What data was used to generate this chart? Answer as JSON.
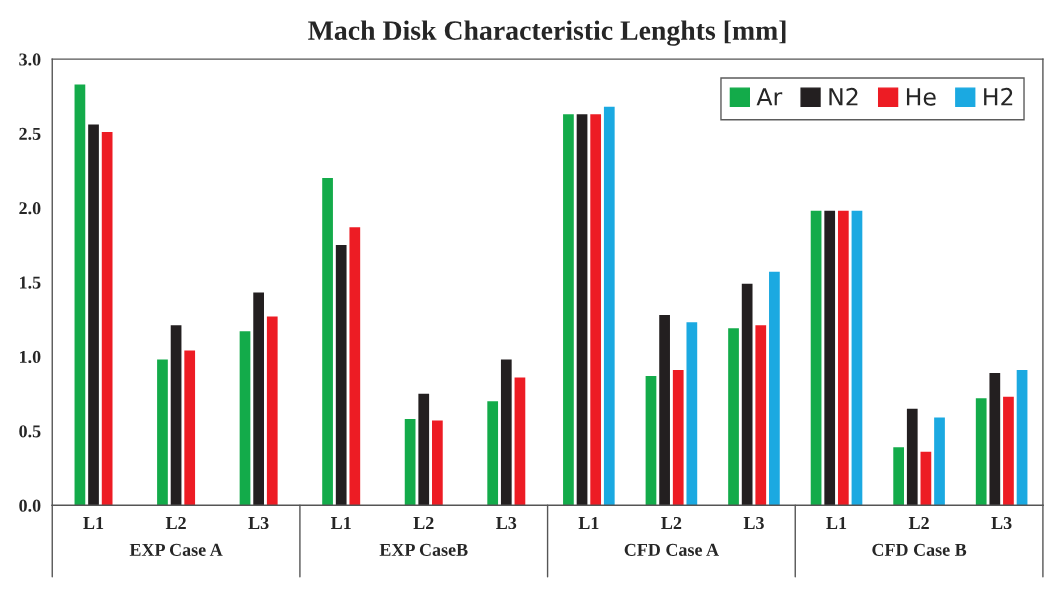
{
  "chart_data": {
    "type": "bar",
    "title": "Mach Disk Characteristic Lenghts [mm]",
    "categories": [
      "L1",
      "L2",
      "L3",
      "L1",
      "L2",
      "L3",
      "L1",
      "L2",
      "L3",
      "L1",
      "L2",
      "L3"
    ],
    "series": [
      {
        "name": "Ar",
        "color": "#13ab4a",
        "values": [
          2.83,
          0.98,
          1.17,
          2.2,
          0.58,
          0.7,
          2.63,
          0.87,
          1.19,
          1.98,
          0.39,
          0.72
        ]
      },
      {
        "name": "N2",
        "color": "#231f20",
        "values": [
          2.56,
          1.21,
          1.43,
          1.75,
          0.75,
          0.98,
          2.63,
          1.28,
          1.49,
          1.98,
          0.65,
          0.89
        ]
      },
      {
        "name": "He",
        "color": "#ed1c24",
        "values": [
          2.51,
          1.04,
          1.27,
          1.87,
          0.57,
          0.86,
          2.63,
          0.91,
          1.21,
          1.98,
          0.36,
          0.73
        ]
      },
      {
        "name": "H2",
        "color": "#1ba9e1",
        "values": [
          null,
          null,
          null,
          null,
          null,
          null,
          2.68,
          1.23,
          1.57,
          1.98,
          0.59,
          0.91
        ]
      }
    ],
    "annotations": [
      "EXP Case A",
      "EXP CaseB",
      "CFD Case A",
      "CFD Case B"
    ],
    "ylim": [
      0,
      3
    ],
    "yticks": [
      {
        "value": 0,
        "label": "0.0"
      },
      {
        "value": 0.5,
        "label": "0.5"
      },
      {
        "value": 1,
        "label": "1.0"
      },
      {
        "value": 1.5,
        "label": "1.5"
      },
      {
        "value": 2,
        "label": "2.0"
      },
      {
        "value": 2.5,
        "label": "2.5"
      },
      {
        "value": 3,
        "label": "3.0"
      }
    ],
    "legend": "top right",
    "grid": false
  }
}
